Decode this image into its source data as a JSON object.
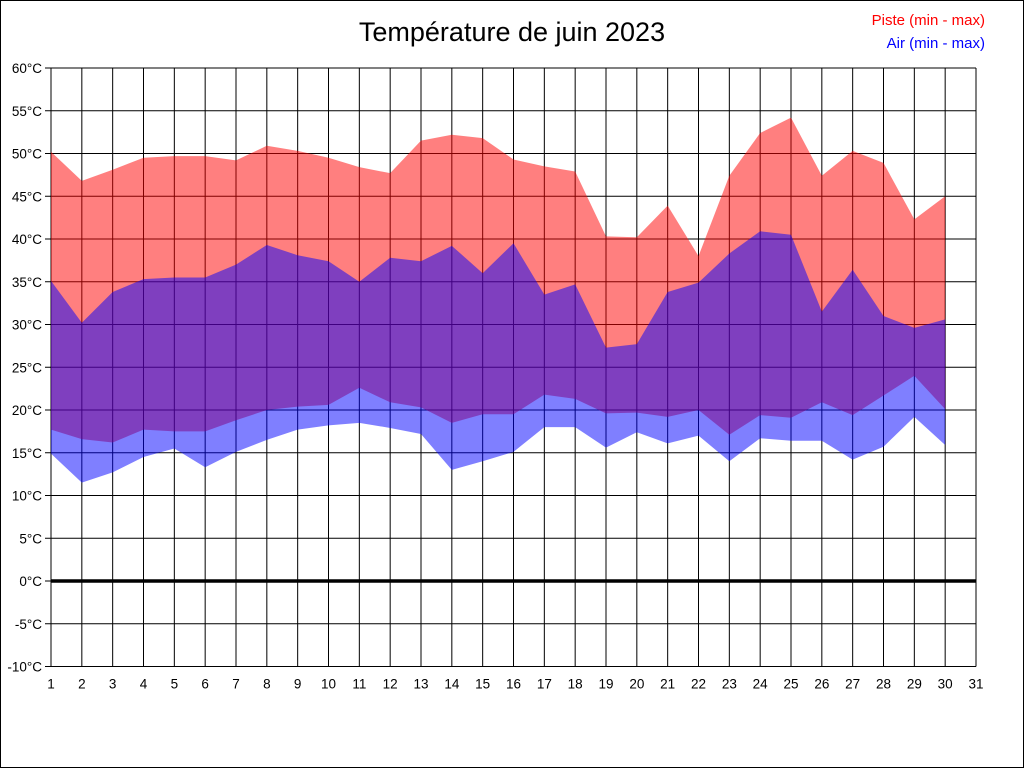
{
  "chart_data": {
    "type": "area",
    "title": "Température de juin 2023",
    "xlabel": "",
    "ylabel": "",
    "y_unit": "°C",
    "ylim": [
      -10,
      60
    ],
    "y_ticks": [
      60,
      55,
      50,
      45,
      40,
      35,
      30,
      25,
      20,
      15,
      10,
      5,
      0,
      -5,
      -10
    ],
    "x_ticks": [
      1,
      2,
      3,
      4,
      5,
      6,
      7,
      8,
      9,
      10,
      11,
      12,
      13,
      14,
      15,
      16,
      17,
      18,
      19,
      20,
      21,
      22,
      23,
      24,
      25,
      26,
      27,
      28,
      29,
      30,
      31
    ],
    "grid": true,
    "zero_line": 0,
    "legend_position": "top-right",
    "x": [
      1,
      2,
      3,
      4,
      5,
      6,
      7,
      8,
      9,
      10,
      11,
      12,
      13,
      14,
      15,
      16,
      17,
      18,
      19,
      20,
      21,
      22,
      23,
      24,
      25,
      26,
      27,
      28,
      29,
      30
    ],
    "series": [
      {
        "name": "Piste (min - max)",
        "color": "#FF0000",
        "fill_opacity": 0.5,
        "max": [
          50.2,
          46.8,
          48.1,
          49.5,
          49.7,
          49.7,
          49.2,
          50.9,
          50.3,
          49.5,
          48.4,
          47.7,
          51.5,
          52.2,
          51.8,
          49.3,
          48.5,
          47.9,
          40.3,
          40.2,
          43.9,
          38.0,
          47.4,
          52.4,
          54.2,
          47.4,
          50.3,
          48.9,
          42.3,
          45.0
        ],
        "min": [
          17.7,
          16.6,
          16.2,
          17.7,
          17.5,
          17.5,
          18.8,
          20.0,
          20.4,
          20.6,
          22.6,
          20.9,
          20.3,
          18.5,
          19.5,
          19.5,
          21.8,
          21.3,
          19.6,
          19.7,
          19.2,
          20.0,
          17.1,
          19.4,
          19.1,
          20.9,
          19.4,
          21.7,
          24.0,
          20.1
        ]
      },
      {
        "name": "Air (min - max)",
        "color": "#0000FF",
        "fill_opacity": 0.5,
        "max": [
          35.1,
          30.2,
          33.8,
          35.3,
          35.5,
          35.5,
          37.0,
          39.3,
          38.1,
          37.4,
          35.0,
          37.8,
          37.4,
          39.2,
          36.0,
          39.5,
          33.5,
          34.7,
          27.3,
          27.7,
          33.8,
          34.9,
          38.3,
          40.9,
          40.5,
          31.5,
          36.4,
          31.0,
          29.6,
          30.6
        ],
        "min": [
          14.9,
          11.5,
          12.7,
          14.5,
          15.5,
          13.3,
          15.1,
          16.5,
          17.7,
          18.2,
          18.5,
          17.9,
          17.2,
          13.0,
          14.0,
          15.1,
          18.0,
          18.0,
          15.6,
          17.4,
          16.1,
          17.0,
          14.0,
          16.7,
          16.4,
          16.4,
          14.2,
          15.7,
          19.2,
          15.9
        ]
      }
    ],
    "grid_color": "#000000",
    "axis_text_color": "#000000"
  }
}
